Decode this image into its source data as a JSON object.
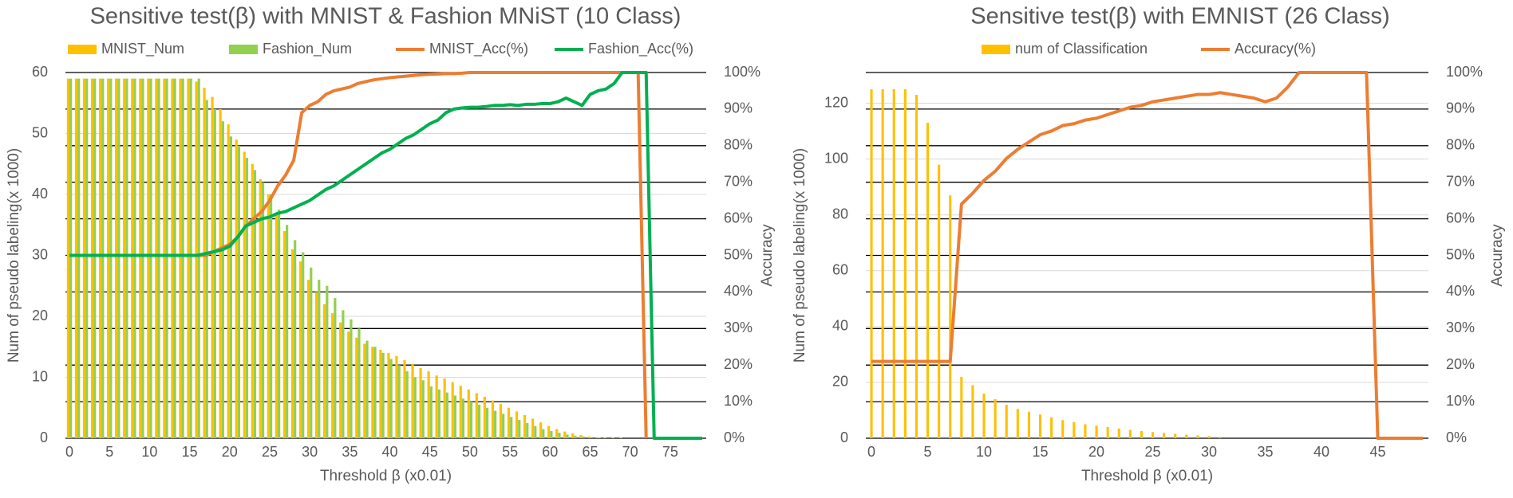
{
  "chart_data": [
    {
      "type": "bar",
      "title": "Sensitive test(β) with MNIST & Fashion MNiST (10 Class)",
      "x_label": "Threshold β (x0.01)",
      "y_label": "Num of pseudo labeling(x 1000)",
      "y2_label": "Accuracy",
      "grid": true,
      "categories": [
        0,
        null,
        null,
        null,
        null,
        5,
        null,
        null,
        null,
        null,
        10,
        null,
        null,
        null,
        null,
        15,
        null,
        null,
        null,
        null,
        20,
        null,
        null,
        null,
        null,
        25,
        null,
        null,
        null,
        null,
        30,
        null,
        null,
        null,
        null,
        35,
        null,
        null,
        null,
        null,
        40,
        null,
        null,
        null,
        null,
        45,
        null,
        null,
        null,
        null,
        50,
        null,
        null,
        null,
        null,
        55,
        null,
        null,
        null,
        null,
        60,
        null,
        null,
        null,
        null,
        65,
        null,
        null,
        null,
        null,
        70,
        null,
        null,
        null,
        null,
        75,
        null,
        null,
        null,
        null
      ],
      "ylim": [
        0,
        60
      ],
      "yticks": [
        0,
        10,
        20,
        30,
        40,
        50,
        60
      ],
      "y2lim": [
        0,
        100
      ],
      "y2ticks": [
        {
          "value": 0,
          "label": "0%"
        },
        {
          "value": 10,
          "label": "10%"
        },
        {
          "value": 20,
          "label": "20%"
        },
        {
          "value": 30,
          "label": "30%"
        },
        {
          "value": 40,
          "label": "40%"
        },
        {
          "value": 50,
          "label": "50%"
        },
        {
          "value": 60,
          "label": "60%"
        },
        {
          "value": 70,
          "label": "70%"
        },
        {
          "value": 80,
          "label": "80%"
        },
        {
          "value": 90,
          "label": "90%"
        },
        {
          "value": 100,
          "label": "100%"
        }
      ],
      "series": [
        {
          "name": "MNIST_Num",
          "type": "bar",
          "color": "#ffc000",
          "values": [
            59,
            59,
            59,
            59,
            59,
            59,
            59,
            59,
            59,
            59,
            59,
            59,
            59,
            59,
            59,
            59,
            58.5,
            57.5,
            56,
            54,
            51.5,
            49,
            47,
            45,
            42.5,
            40,
            37,
            34,
            31,
            29,
            26,
            24,
            22,
            20.5,
            19,
            17.5,
            16.5,
            15.5,
            15,
            14.5,
            14,
            13.5,
            12.8,
            12.2,
            11.5,
            11,
            10.3,
            9.8,
            9.2,
            8.6,
            8,
            7.4,
            6.8,
            6.2,
            5.6,
            5,
            4.4,
            3.8,
            3.2,
            2.6,
            2,
            1.5,
            1.1,
            0.8,
            0.5,
            0.3,
            0.2,
            0.1,
            0.1,
            0.1,
            0,
            0,
            0,
            0,
            0,
            0,
            0,
            0,
            0,
            0
          ]
        },
        {
          "name": "Fashion_Num",
          "type": "bar",
          "color": "#92d050",
          "values": [
            59,
            59,
            59,
            59,
            59,
            59,
            59,
            59,
            59,
            59,
            59,
            59,
            59,
            59,
            59,
            59,
            59,
            55.5,
            54,
            52,
            49.5,
            48,
            46,
            44,
            42,
            40,
            37.5,
            35,
            32.5,
            30.5,
            28,
            26,
            25,
            23,
            21,
            19.5,
            18,
            16,
            15,
            14,
            13,
            12,
            11,
            10,
            9.5,
            8.5,
            8,
            7.5,
            7,
            6.5,
            6,
            5.5,
            5,
            4.5,
            4,
            3.5,
            3,
            2.5,
            2,
            1.5,
            1.2,
            0.9,
            0.6,
            0.4,
            0.3,
            0.2,
            0.1,
            0,
            0,
            0,
            0,
            0,
            0,
            0,
            0,
            0,
            0,
            0,
            0,
            0
          ]
        },
        {
          "name": "MNIST_Acc(%)",
          "type": "line",
          "axis": "y2",
          "color": "#ed7d31",
          "values": [
            50,
            50,
            50,
            50,
            50,
            50,
            50,
            50,
            50,
            50,
            50,
            50,
            50,
            50,
            50,
            50,
            50,
            50,
            51,
            52,
            53,
            55,
            58,
            60,
            62,
            65,
            69,
            72,
            76,
            89,
            91,
            92,
            94,
            95,
            95.5,
            96,
            97,
            97.5,
            98,
            98.3,
            98.6,
            98.8,
            99,
            99.2,
            99.4,
            99.5,
            99.6,
            99.7,
            99.7,
            99.8,
            100,
            100,
            100,
            100,
            100,
            100,
            100,
            100,
            100,
            100,
            100,
            100,
            100,
            100,
            100,
            100,
            100,
            100,
            100,
            100,
            100,
            100,
            0,
            null,
            null,
            null,
            null,
            null,
            null,
            null
          ]
        },
        {
          "name": "Fashion_Acc(%)",
          "type": "line",
          "axis": "y2",
          "color": "#00b050",
          "values": [
            50,
            50,
            50,
            50,
            50,
            50,
            50,
            50,
            50,
            50,
            50,
            50,
            50,
            50,
            50,
            50,
            50,
            50.5,
            51,
            51.5,
            52.5,
            55,
            58,
            59,
            60,
            60.5,
            61.5,
            62,
            63,
            64,
            65,
            66.5,
            68,
            69,
            70.5,
            72,
            73.5,
            75,
            76.5,
            78,
            79,
            80.5,
            82,
            83,
            84.5,
            86,
            87,
            89,
            90,
            90.3,
            90.5,
            90.5,
            90.7,
            91,
            91,
            91.2,
            91,
            91.3,
            91.3,
            91.5,
            91.5,
            92,
            93,
            92,
            91,
            94,
            95,
            95.5,
            97,
            100,
            100,
            100,
            100,
            0,
            0,
            0,
            0,
            0,
            0,
            0
          ]
        }
      ]
    },
    {
      "type": "bar",
      "title": "Sensitive test(β) with EMNIST (26 Class)",
      "x_label": "Threshold β (x0.01)",
      "y_label": "Num of pseudo labeling(x 1000)",
      "y2_label": "Accuracy",
      "grid": true,
      "categories": [
        0,
        null,
        null,
        null,
        null,
        5,
        null,
        null,
        null,
        null,
        10,
        null,
        null,
        null,
        null,
        15,
        null,
        null,
        null,
        null,
        20,
        null,
        null,
        null,
        null,
        25,
        null,
        null,
        null,
        null,
        30,
        null,
        null,
        null,
        null,
        35,
        null,
        null,
        null,
        null,
        40,
        null,
        null,
        null,
        null,
        45,
        null,
        null,
        null,
        null
      ],
      "ylim": [
        0,
        131
      ],
      "yticks": [
        0,
        20,
        40,
        60,
        80,
        100,
        120
      ],
      "y2lim": [
        0,
        100
      ],
      "y2ticks": [
        {
          "value": 0,
          "label": "0%"
        },
        {
          "value": 10,
          "label": "10%"
        },
        {
          "value": 20,
          "label": "20%"
        },
        {
          "value": 30,
          "label": "30%"
        },
        {
          "value": 40,
          "label": "40%"
        },
        {
          "value": 50,
          "label": "50%"
        },
        {
          "value": 60,
          "label": "60%"
        },
        {
          "value": 70,
          "label": "70%"
        },
        {
          "value": 80,
          "label": "80%"
        },
        {
          "value": 90,
          "label": "90%"
        },
        {
          "value": 100,
          "label": "100%"
        }
      ],
      "series": [
        {
          "name": "num of Classification",
          "type": "bar",
          "color": "#ffc000",
          "values": [
            125,
            125,
            125,
            125,
            123,
            113,
            98,
            87,
            22,
            19,
            16,
            14,
            12,
            10.5,
            9.5,
            8.5,
            7.5,
            6.5,
            5.8,
            5,
            4.5,
            4,
            3.5,
            3,
            2.6,
            2.2,
            1.9,
            1.6,
            1.3,
            1,
            0.8,
            0.5,
            0,
            0,
            0,
            0,
            0,
            0,
            0,
            0,
            0,
            0,
            0,
            0,
            0,
            0,
            0,
            0,
            0,
            0
          ]
        },
        {
          "name": "Accuracy(%)",
          "type": "line",
          "axis": "y2",
          "color": "#ed7d31",
          "values": [
            21,
            21,
            21,
            21,
            21,
            21,
            21,
            21,
            64,
            67,
            70.5,
            73,
            76.5,
            79,
            81,
            83,
            84,
            85.5,
            86,
            87,
            87.5,
            88.5,
            89.5,
            90.5,
            91,
            92,
            92.5,
            93,
            93.5,
            94,
            94,
            94.5,
            94,
            93.5,
            93,
            92,
            93,
            96,
            100,
            100,
            100,
            100,
            100,
            100,
            100,
            0,
            0,
            0,
            0,
            0
          ]
        }
      ]
    }
  ]
}
